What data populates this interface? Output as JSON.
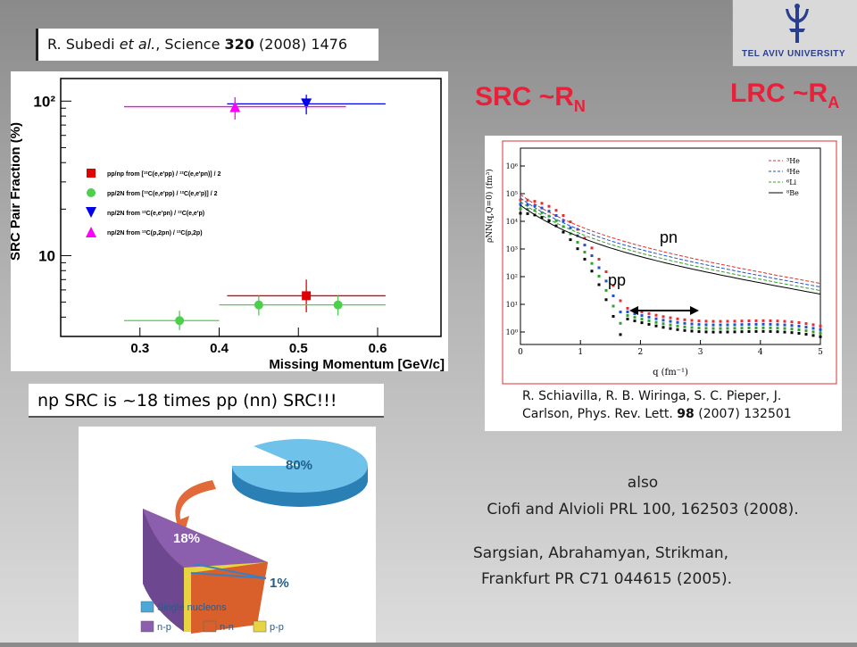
{
  "citation": {
    "authors": "R. Subedi ",
    "etal": "et al.",
    "journal": ", Science ",
    "volume": "320",
    "rest": " (2008) 1476"
  },
  "logo": {
    "name": "TEL AVIV UNIVERSITY"
  },
  "titles": {
    "src": "SRC ~R",
    "src_sub": "N",
    "lrc": "LRC ~R",
    "lrc_sub": "A"
  },
  "note": "np SRC is ~18 times pp (nn) SRC!!!",
  "right_plot": {
    "y_axis_label": "ρNN(q,Q=0) (fm³)",
    "x_axis_label": "q (fm⁻¹)",
    "x_ticks": [
      "0",
      "1",
      "2",
      "3",
      "4",
      "5"
    ],
    "y_ticks": [
      "10⁰",
      "10¹",
      "10²",
      "10³",
      "10⁴",
      "10⁵",
      "10⁶"
    ],
    "legend": [
      "³He",
      "⁴He",
      "⁶Li",
      "⁸Be"
    ],
    "label_pn": "pn",
    "label_pp": "pp",
    "reference_line1": "R. Schiavilla, R. B. Wiringa, S. C. Pieper, J.",
    "reference_line2": "Carlson, Phys. Rev. Lett. ",
    "reference_vol": "98",
    "reference_rest": " (2007) 132501"
  },
  "pie": {
    "label_80": "80%",
    "label_18": "18%",
    "label_1": "1%",
    "legend": [
      "Single nucleons",
      "n-p",
      "n-n",
      "p-p"
    ],
    "colors": [
      "#4aa7d8",
      "#8b5fae",
      "#d9602a",
      "#e8d340"
    ]
  },
  "references": {
    "also": "also",
    "ciofi": "Ciofi and Alvioli PRL 100, 162503 (2008).",
    "sargsian1": "Sargsian, Abrahamyan, Strikman,",
    "sargsian2": "Frankfurt PR C71 044615 (2005)."
  },
  "chart_data": {
    "type": "scatter",
    "ylabel": "SRC Pair Fraction (%)",
    "xlabel": "Missing Momentum [GeV/c]",
    "yscale": "log",
    "xlim": [
      0.2,
      0.68
    ],
    "ylim": [
      3,
      140
    ],
    "x_ticks": [
      0.3,
      0.4,
      0.5,
      0.6
    ],
    "x_tick_labels": [
      "0.3",
      "0.4",
      "0.5",
      "0.6"
    ],
    "y_ticks": [
      10,
      100
    ],
    "y_tick_labels": [
      "10",
      "10²"
    ],
    "series": [
      {
        "name": "pp/np from [¹²C(e,e'pp) / ¹²C(e,e'pn)] / 2",
        "marker": "square",
        "color": "#e00000",
        "points": [
          {
            "x": 0.51,
            "y": 5.5,
            "xerr": [
              0.41,
              0.61
            ],
            "yerr": [
              4.3,
              7.0
            ]
          }
        ]
      },
      {
        "name": "pp/2N from [¹²C(e,e'pp) / ¹²C(e,e'p)] / 2",
        "marker": "circle",
        "color": "#4cd04c",
        "points": [
          {
            "x": 0.35,
            "y": 3.8,
            "xerr": [
              0.28,
              0.4
            ],
            "yerr": [
              3.3,
              4.4
            ]
          },
          {
            "x": 0.45,
            "y": 4.8,
            "xerr": [
              0.4,
              0.5
            ],
            "yerr": [
              4.1,
              5.5
            ]
          },
          {
            "x": 0.55,
            "y": 4.8,
            "xerr": [
              0.5,
              0.61
            ],
            "yerr": [
              4.1,
              5.5
            ]
          }
        ]
      },
      {
        "name": "np/2N from ¹²C(e,e'pn) / ¹²C(e,e'p)",
        "marker": "triangle-down",
        "color": "#0000ee",
        "points": [
          {
            "x": 0.51,
            "y": 96,
            "xerr": [
              0.41,
              0.61
            ],
            "yerr": [
              82,
              110
            ]
          }
        ]
      },
      {
        "name": "np/2N from ¹²C(p,2pn) / ¹²C(p,2p)",
        "marker": "triangle-up",
        "color": "#ff00ff",
        "points": [
          {
            "x": 0.42,
            "y": 92,
            "xerr": [
              0.28,
              0.56
            ],
            "yerr": [
              76,
              106
            ]
          }
        ]
      }
    ]
  }
}
